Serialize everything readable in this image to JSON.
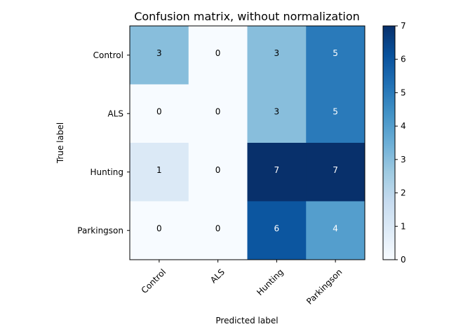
{
  "chart_data": {
    "type": "heatmap",
    "title": "Confusion matrix, without normalization",
    "xlabel": "Predicted label",
    "ylabel": "True label",
    "rows": [
      "Control",
      "ALS",
      "Hunting",
      "Parkingson"
    ],
    "cols": [
      "Control",
      "ALS",
      "Hunting",
      "Parkingson"
    ],
    "values": [
      [
        3,
        0,
        3,
        5
      ],
      [
        0,
        0,
        3,
        5
      ],
      [
        1,
        0,
        7,
        7
      ],
      [
        0,
        0,
        6,
        4
      ]
    ],
    "colorbar": {
      "min": 0,
      "max": 7,
      "ticks": [
        "0",
        "1",
        "2",
        "3",
        "4",
        "5",
        "6",
        "7"
      ],
      "colormap": "Blues"
    }
  }
}
